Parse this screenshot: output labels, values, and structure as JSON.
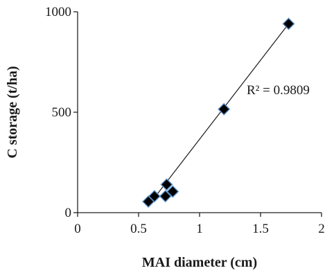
{
  "chart_data": {
    "type": "scatter",
    "title": "",
    "xlabel": "MAI diameter (cm)",
    "ylabel": "C storage (t/ha)",
    "xlim": [
      0,
      2
    ],
    "ylim": [
      0,
      1000
    ],
    "x_ticks": [
      0,
      0.5,
      1,
      1.5,
      2
    ],
    "x_tick_labels": [
      "0",
      "0.5",
      "1",
      "1.5",
      "2"
    ],
    "y_ticks": [
      0,
      500,
      1000
    ],
    "y_tick_labels": [
      "0",
      "500",
      "1000"
    ],
    "grid": false,
    "legend": "none",
    "series": [
      {
        "x": [
          0.58,
          0.63,
          0.72,
          0.73,
          0.78,
          1.2,
          1.73
        ],
        "y": [
          55,
          82,
          82,
          140,
          105,
          515,
          940
        ],
        "marker": "diamond",
        "marker_color": "#000000",
        "marker_edge_color": "#5a8fc8"
      }
    ],
    "trendline": {
      "type": "linear",
      "from": [
        0.58,
        35
      ],
      "to": [
        1.73,
        940
      ],
      "label": "R² = 0.9809"
    }
  }
}
